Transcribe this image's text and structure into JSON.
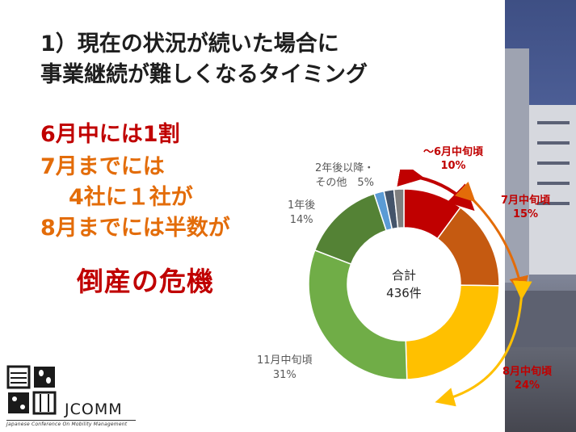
{
  "slide": {
    "title_line1": "1）現在の状況が続いた場合に",
    "title_line2": "事業継続が難しくなるタイミング"
  },
  "points": {
    "line1": "6月中には1割",
    "line2": "7月までには",
    "line3": "4社に１社が",
    "line4": "8月までには半数が",
    "crisis": "倒産の危機"
  },
  "chart_data": {
    "type": "pie",
    "title": "",
    "center_label_line1": "合計",
    "center_label_line2": "436件",
    "slices": [
      {
        "label": "〜6月中旬頃",
        "value": 10,
        "display": "10%",
        "color": "#c00000"
      },
      {
        "label": "7月中旬頃",
        "value": 15,
        "display": "15%",
        "color": "#c55a11"
      },
      {
        "label": "8月中旬頃",
        "value": 24,
        "display": "24%",
        "color": "#ffc000"
      },
      {
        "label": "11月中旬頃",
        "value": 31,
        "display": "31%",
        "color": "#70ad47"
      },
      {
        "label": "1年後",
        "value": 14,
        "display": "14%",
        "color": "#548235"
      },
      {
        "label": "2年後以降・その他",
        "value": 5,
        "display": "5%",
        "colors": [
          "#5b9bd5",
          "#44546a",
          "#7f7f7f"
        ]
      }
    ],
    "label_1y_line1": "1年後",
    "label_2y_line1": "2年後以降・",
    "label_2y_line2": "その他　5%"
  },
  "logo": {
    "name": "JCOMM",
    "subtitle": "Japanese Conference On Mobility Management"
  },
  "colors": {
    "accent_red": "#c00000",
    "accent_orange": "#e36c09"
  }
}
